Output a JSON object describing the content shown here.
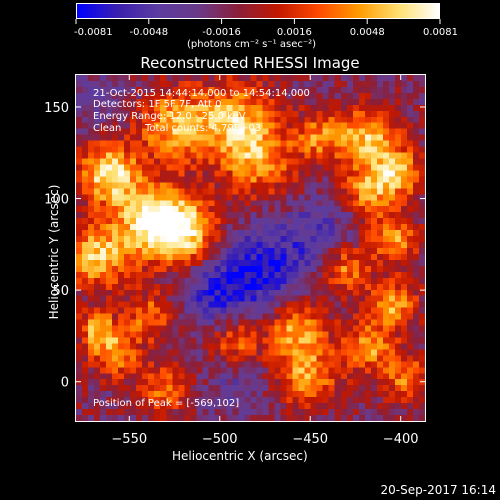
{
  "colorbar": {
    "ticks": [
      "-0.0081",
      "-0.0048",
      "-0.0016",
      "0.0016",
      "0.0048",
      "0.0081"
    ],
    "units_label": "(photons cm⁻² s⁻¹ asec⁻²)",
    "colormap": [
      "#0000ff",
      "#3a1fb0",
      "#5c3ca0",
      "#6a3a8a",
      "#8a1f3a",
      "#c21800",
      "#ff4a00",
      "#ff9a00",
      "#ffe070",
      "#ffffff"
    ],
    "range": [
      -0.0081,
      0.0081
    ]
  },
  "chart_data": {
    "type": "heatmap",
    "title": "Reconstructed RHESSI Image",
    "xlabel": "Heliocentric X (arcsec)",
    "ylabel": "Heliocentric Y (arcsec)",
    "xlim": [
      -580,
      -386
    ],
    "ylim": [
      -22,
      168
    ],
    "xticks": [
      -550,
      -500,
      -450,
      -400
    ],
    "yticks": [
      0,
      50,
      100,
      150
    ],
    "peak": [
      -569,
      102
    ],
    "grid": false
  },
  "annotations": {
    "time_range": "21-Oct-2015 14:44:14.000 to 14:54:14.000",
    "detectors": "Detectors: 1F 5F 7F, Att 0",
    "energy": "Energy Range: 12.0 - 25.0 keV",
    "clean": "Clean",
    "counts": "Total counts: 4.79E+03",
    "peak": "Position of Peak = [-569,102]"
  },
  "footer": {
    "timestamp": "20-Sep-2017 16:14"
  }
}
